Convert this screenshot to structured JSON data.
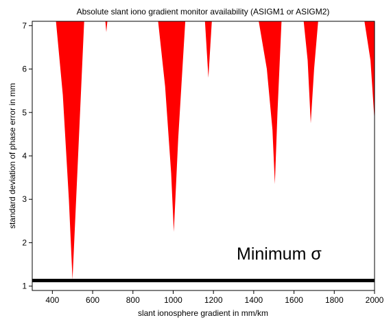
{
  "chart_data": {
    "type": "area",
    "title": "Absolute slant iono gradient monitor availability (ASIGM1 or ASIGM2)",
    "xlabel": "slant ionosphere gradient in mm/km",
    "ylabel": "standard deviation of phase error in mm",
    "xlim": [
      300,
      2000
    ],
    "ylim": [
      0.9,
      7.1
    ],
    "x_ticks": [
      400,
      600,
      800,
      1000,
      1200,
      1400,
      1600,
      1800,
      2000
    ],
    "y_ticks": [
      1,
      2,
      3,
      4,
      5,
      6,
      7
    ],
    "grid": false,
    "fill_color": "#ff0000",
    "regions": [
      {
        "x": [
          418,
          452,
          482,
          500,
          526,
          558
        ],
        "y_min": [
          7.1,
          5.4,
          3.0,
          1.15,
          3.8,
          7.1
        ]
      },
      {
        "x": [
          663,
          668,
          673
        ],
        "y_min": [
          7.1,
          6.85,
          7.1
        ]
      },
      {
        "x": [
          925,
          960,
          990,
          1003,
          1025,
          1060
        ],
        "y_min": [
          7.1,
          5.6,
          3.6,
          2.25,
          4.4,
          7.1
        ]
      },
      {
        "x": [
          1158,
          1175,
          1192
        ],
        "y_min": [
          7.1,
          5.8,
          7.1
        ]
      },
      {
        "x": [
          1425,
          1465,
          1493,
          1505,
          1518,
          1538
        ],
        "y_min": [
          7.1,
          6.0,
          4.6,
          3.35,
          5.0,
          7.1
        ]
      },
      {
        "x": [
          1648,
          1668,
          1683,
          1700,
          1720
        ],
        "y_min": [
          7.1,
          6.2,
          4.75,
          6.0,
          7.1
        ]
      },
      {
        "x": [
          1950,
          1980,
          2000
        ],
        "y_min": [
          7.1,
          6.2,
          4.8
        ]
      }
    ],
    "reference_line": {
      "y": 1.13,
      "color": "#000000"
    },
    "annotation": "Minimum σ"
  }
}
